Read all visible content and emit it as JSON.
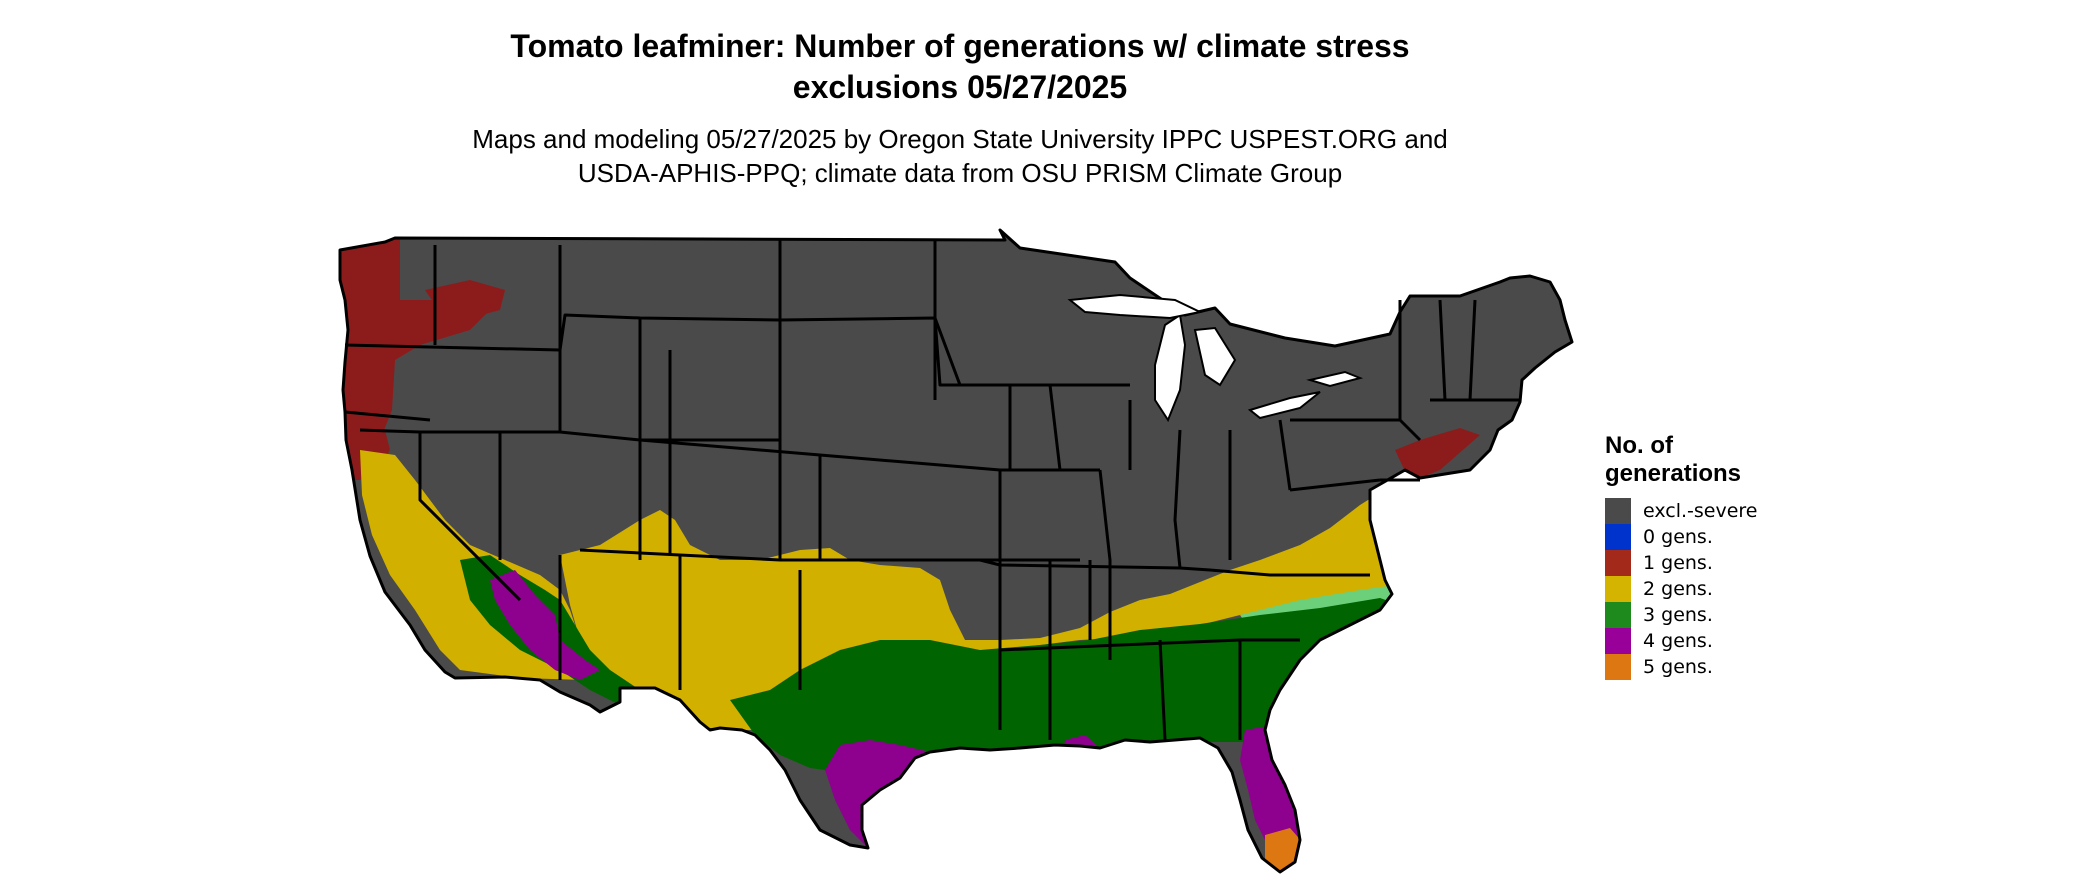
{
  "map": {
    "title_line1": "Tomato leafminer: Number of generations w/ climate stress",
    "title_line2": "exclusions 05/27/2025",
    "subtitle_line1": "Maps and modeling 05/27/2025 by Oregon State University IPPC USPEST.ORG and",
    "subtitle_line2": "USDA-APHIS-PPQ; climate data from OSU PRISM Climate Group"
  },
  "legend": {
    "title_line1": "No. of",
    "title_line2": "generations",
    "items": [
      {
        "label": "excl.-severe",
        "color": "#4a4a4a"
      },
      {
        "label": "0 gens.",
        "color": "#0033cc"
      },
      {
        "label": "1 gens.",
        "color": "#a32a1a"
      },
      {
        "label": "2 gens.",
        "color": "#d4b400"
      },
      {
        "label": "3 gens.",
        "color": "#1e8a1e"
      },
      {
        "label": "4 gens.",
        "color": "#990099"
      },
      {
        "label": "5 gens.",
        "color": "#dd7711"
      }
    ]
  },
  "colors": {
    "excluded": "#4a4a4a",
    "gen1": "#8c1c1c",
    "gen2": "#d2b000",
    "gen3": "#006400",
    "gen3_light": "#6ccf7a",
    "gen4": "#8e008e",
    "gen5": "#dd7711",
    "state_border": "#000000"
  }
}
